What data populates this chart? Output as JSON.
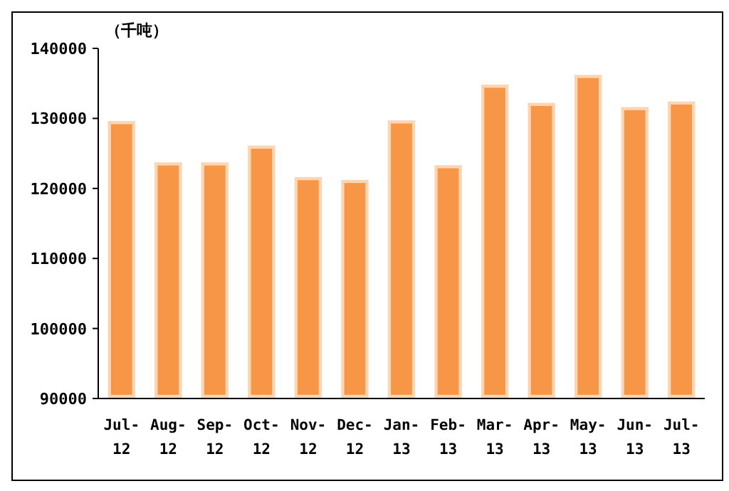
{
  "chart_data": {
    "type": "bar",
    "ylabel": "（千吨）",
    "categories": [
      "Jul-12",
      "Aug-12",
      "Sep-12",
      "Oct-12",
      "Nov-12",
      "Dec-12",
      "Jan-13",
      "Feb-13",
      "Mar-13",
      "Apr-13",
      "May-13",
      "Jun-13",
      "Jul-13"
    ],
    "series": [
      {
        "color": "#f79646",
        "values": [
          129400,
          123500,
          123500,
          125900,
          121400,
          121000,
          129500,
          123100,
          134600,
          132000,
          136000,
          131400,
          132200
        ]
      }
    ],
    "ylim": [
      90000,
      140000
    ],
    "yticks": [
      90000,
      100000,
      110000,
      120000,
      130000,
      140000
    ],
    "grid": false
  }
}
